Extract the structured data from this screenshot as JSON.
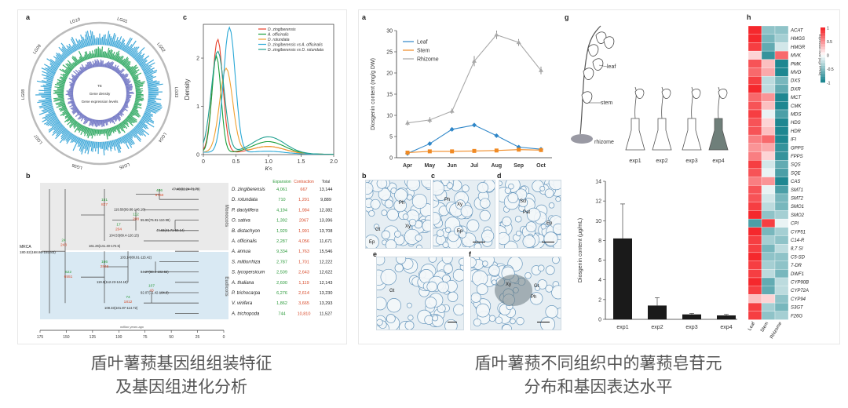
{
  "captions": {
    "left_line1": "盾叶薯蓣基因组组装特征",
    "left_line2": "及基因组进化分析",
    "right_line1": "盾叶薯蓣不同组织中的薯蓣皂苷元",
    "right_line2": "分布和基因表达水平"
  },
  "panel_letters": {
    "a": "a",
    "b": "b",
    "c": "c",
    "a2": "a",
    "b2": "b",
    "c2": "c",
    "d2": "d",
    "e2": "e",
    "f2": "f",
    "g2": "g",
    "h2": "h"
  },
  "circos": {
    "chromosomes": [
      "LG01",
      "LG02",
      "LG03",
      "LG04",
      "LG05",
      "LG06",
      "LG07",
      "LG08",
      "LG09",
      "LG10"
    ],
    "inner_labels": [
      "TE",
      "Gene density",
      "Gene expression levels"
    ],
    "colors": {
      "outer": "#41a9d9",
      "mid": "#3cae6c",
      "inner": "#7a7fc8"
    }
  },
  "density_plot": {
    "ylabel": "Density",
    "xlabel": "Ks",
    "xticks": [
      "0",
      "0.5",
      "1.0",
      "1.5",
      "2.0"
    ],
    "yticks": [
      "0",
      "1",
      "2"
    ],
    "legend": [
      {
        "name": "D. zingiberensis",
        "color": "#e8402a"
      },
      {
        "name": "A. officinalis",
        "color": "#1a9e3a"
      },
      {
        "name": "D. rotundata",
        "color": "#f0a030"
      },
      {
        "name": "D. zingiberensis vs A. officinalis",
        "color": "#2aa8d6"
      },
      {
        "name": "D. zingiberensis vs D. rotundata",
        "color": "#20a090"
      }
    ]
  },
  "phylogeny": {
    "col_headers": {
      "expansion": "Expansion",
      "contraction": "Contraction",
      "total": "Total"
    },
    "species": [
      {
        "name": "D. zingiberensis",
        "expansion": "4,061",
        "contraction": "667",
        "total": "13,144"
      },
      {
        "name": "D. rotundata",
        "expansion": "710",
        "contraction": "1,291",
        "total": "9,889"
      },
      {
        "name": "P. dactylifera",
        "expansion": "4,194",
        "contraction": "1,984",
        "total": "12,382"
      },
      {
        "name": "O. sativa",
        "expansion": "1,392",
        "contraction": "2067",
        "total": "13,396"
      },
      {
        "name": "B. distachyon",
        "expansion": "1,929",
        "contraction": "1,991",
        "total": "13,708"
      },
      {
        "name": "A. officinalis",
        "expansion": "2,287",
        "contraction": "4,056",
        "total": "11,671"
      },
      {
        "name": "A. annua",
        "expansion": "9,334",
        "contraction": "1,763",
        "total": "15,546"
      },
      {
        "name": "S. miltiorrhiza",
        "expansion": "2,787",
        "contraction": "1,701",
        "total": "12,222"
      },
      {
        "name": "S. lycopersicum",
        "expansion": "2,509",
        "contraction": "2,643",
        "total": "12,622"
      },
      {
        "name": "A. thaliana",
        "expansion": "2,600",
        "contraction": "1,119",
        "total": "12,143"
      },
      {
        "name": "P. trichocarpa",
        "expansion": "6,276",
        "contraction": "2,614",
        "total": "13,230"
      },
      {
        "name": "V. vinifera",
        "expansion": "1,862",
        "contraction": "3,665",
        "total": "13,293"
      },
      {
        "name": "A. trichopoda",
        "expansion": "744",
        "contraction": "10,810",
        "total": "11,527"
      }
    ],
    "group_labels": {
      "monocots": "Monocots",
      "eudicots": "Eudicots"
    },
    "node_labels": [
      "MRCA",
      "180.52(168.86-193.83)",
      "161.26(141.40-172.5)",
      "119.56(99.86-146.18)",
      "55.90(76.91-110.99)",
      "104.53(89.4-120.15)",
      "46.63(41.71-59.14)",
      "47.40(32.24-71.79)",
      "103.14(88.91-115.42)",
      "94.27(80.4-102.55)",
      "119.5(112.23-124.18)",
      "92.07(71.42-104.8)",
      "108.33(101.87-114.72)"
    ],
    "node_counts": [
      {
        "up": "24",
        "down": "243"
      },
      {
        "up": "151",
        "down": "827"
      },
      {
        "up": "406",
        "down": "5760"
      },
      {
        "up": "112",
        "down": "208"
      },
      {
        "up": "17",
        "down": "204"
      },
      {
        "up": "166",
        "down": "2846"
      },
      {
        "up": "622",
        "down": "6551"
      },
      {
        "up": "107",
        "down": "43"
      },
      {
        "up": "74",
        "down": "1812"
      }
    ],
    "axis_ticks": [
      "175",
      "150",
      "125",
      "100",
      "75",
      "50",
      "25",
      "0"
    ],
    "axis_label": "million years ago"
  },
  "line_chart": {
    "ylabel": "Diosgenin content (mg/g DW)",
    "categories": [
      "Apr",
      "May",
      "Jun",
      "Jul",
      "Aug",
      "Sep",
      "Oct"
    ],
    "yticks": [
      "0",
      "5",
      "10",
      "15",
      "20",
      "25",
      "30"
    ],
    "legend": [
      {
        "name": "Leaf",
        "color": "#2e86c8",
        "marker": "diamond"
      },
      {
        "name": "Stem",
        "color": "#f08a24",
        "marker": "square"
      },
      {
        "name": "Rhizome",
        "color": "#a8a8a8",
        "marker": "triangle"
      }
    ]
  },
  "chart_data": [
    {
      "type": "line",
      "title": "",
      "xlabel": "",
      "ylabel": "Diosgenin content (mg/g DW)",
      "ylim": [
        0,
        30
      ],
      "categories": [
        "Apr",
        "May",
        "Jun",
        "Jul",
        "Aug",
        "Sep",
        "Oct"
      ],
      "series": [
        {
          "name": "Leaf",
          "values": [
            1.0,
            3.3,
            6.7,
            7.7,
            5.2,
            2.5,
            2.0
          ],
          "errors": [
            0.3,
            0.4,
            0.5,
            0.5,
            0.4,
            0.3,
            0.3
          ]
        },
        {
          "name": "Stem",
          "values": [
            1.2,
            1.5,
            1.5,
            1.6,
            1.7,
            1.9,
            1.8
          ],
          "errors": [
            0.3,
            0.3,
            0.3,
            0.3,
            0.3,
            0.3,
            0.3
          ]
        },
        {
          "name": "Rhizome",
          "values": [
            8.2,
            8.9,
            11.0,
            22.8,
            29.0,
            27.2,
            20.6
          ],
          "errors": [
            0.6,
            0.7,
            0.6,
            1.2,
            1.0,
            0.8,
            0.9
          ]
        }
      ],
      "grid": false,
      "legend_position": "top-left"
    },
    {
      "type": "bar",
      "title": "",
      "xlabel": "",
      "ylabel": "Diosgenin content (μg/mL)",
      "ylim": [
        0,
        14
      ],
      "categories": [
        "exp1",
        "exp2",
        "exp3",
        "exp4"
      ],
      "values": [
        8.2,
        1.4,
        0.5,
        0.4
      ],
      "errors": [
        3.5,
        0.8,
        0.1,
        0.1
      ],
      "yticks": [
        "0",
        "2",
        "4",
        "6",
        "8",
        "10",
        "12",
        "14"
      ]
    },
    {
      "type": "heatmap",
      "columns": [
        "Leaf",
        "Stem",
        "Rhizome"
      ],
      "rows": [
        "ACAT",
        "HMGS",
        "HMGR",
        "MVK",
        "PMK",
        "MVD",
        "DXS",
        "DXR",
        "MCT",
        "CMK",
        "MDS",
        "HDS",
        "HDR",
        "IFI",
        "GPPS",
        "FPPS",
        "SQS",
        "SQE",
        "CAS",
        "SMT1",
        "SMT2",
        "SMO1",
        "SMO2",
        "CPI",
        "CYP51",
        "C14-R",
        "8,7 SI",
        "C5-SD",
        "7-DR",
        "DWF1",
        "CYP90B",
        "CYP72A",
        "CYP94",
        "S3GT",
        "F26G"
      ],
      "colorbar_label": "Expression level (log2 FPKM)",
      "colorbar_ticks": [
        "1",
        "0.5",
        "0",
        "-0.5",
        "-1"
      ],
      "values": [
        [
          1,
          -0.5,
          -0.5
        ],
        [
          1,
          -0.6,
          -0.4
        ],
        [
          0.9,
          -0.7,
          -0.2
        ],
        [
          0.2,
          -0.9,
          0.7
        ],
        [
          0.8,
          0.3,
          -1
        ],
        [
          0.7,
          0.4,
          -1
        ],
        [
          0.9,
          -0.3,
          -0.6
        ],
        [
          1,
          -0.3,
          -0.7
        ],
        [
          0.7,
          0.5,
          -1
        ],
        [
          0.8,
          0.3,
          -1
        ],
        [
          0.9,
          -0.1,
          -0.8
        ],
        [
          0.8,
          0.2,
          -1
        ],
        [
          0.8,
          0.3,
          -1
        ],
        [
          0.6,
          0.7,
          -1
        ],
        [
          0.5,
          0.4,
          -0.9
        ],
        [
          0.6,
          0.2,
          -0.9
        ],
        [
          0.9,
          -0.2,
          -0.7
        ],
        [
          0.8,
          -0.1,
          -0.8
        ],
        [
          0.6,
          0.5,
          -1
        ],
        [
          0.8,
          -0.1,
          -0.8
        ],
        [
          0.8,
          -0.2,
          -0.6
        ],
        [
          0.9,
          -0.3,
          -0.6
        ],
        [
          1,
          -0.5,
          -0.4
        ],
        [
          -0.8,
          0.9,
          -0.1
        ],
        [
          1,
          -0.6,
          -0.4
        ],
        [
          0.9,
          -0.4,
          -0.5
        ],
        [
          0.9,
          -0.6,
          -0.3
        ],
        [
          1,
          -0.5,
          -0.5
        ],
        [
          0.9,
          -0.4,
          -0.5
        ],
        [
          0.9,
          -0.3,
          -0.6
        ],
        [
          1,
          -0.7,
          -0.3
        ],
        [
          0.9,
          -0.7,
          -0.3
        ],
        [
          0.3,
          0.2,
          -0.5
        ],
        [
          0.9,
          -0.4,
          -0.6
        ],
        [
          0.9,
          -0.5,
          -0.4
        ]
      ]
    }
  ],
  "bar_chart": {
    "ylabel": "Diosgenin content (μg/mL)"
  },
  "micrographs": [
    {
      "panel": "b",
      "tags": [
        "Ph",
        "Xy",
        "Gt",
        "Ep"
      ]
    },
    {
      "panel": "c",
      "tags": [
        "Ph",
        "Xy",
        "Ep"
      ]
    },
    {
      "panel": "d",
      "tags": [
        "Scl",
        "Pat",
        "Ep"
      ]
    },
    {
      "panel": "e",
      "tags": [
        "Gt"
      ]
    },
    {
      "panel": "f",
      "tags": [
        "Xy",
        "Gt",
        "Ph"
      ]
    }
  ],
  "plant_illustration": {
    "labels": [
      "leaf",
      "stem",
      "rhizome"
    ],
    "experiments": [
      "exp1",
      "exp2",
      "exp3",
      "exp4"
    ]
  }
}
